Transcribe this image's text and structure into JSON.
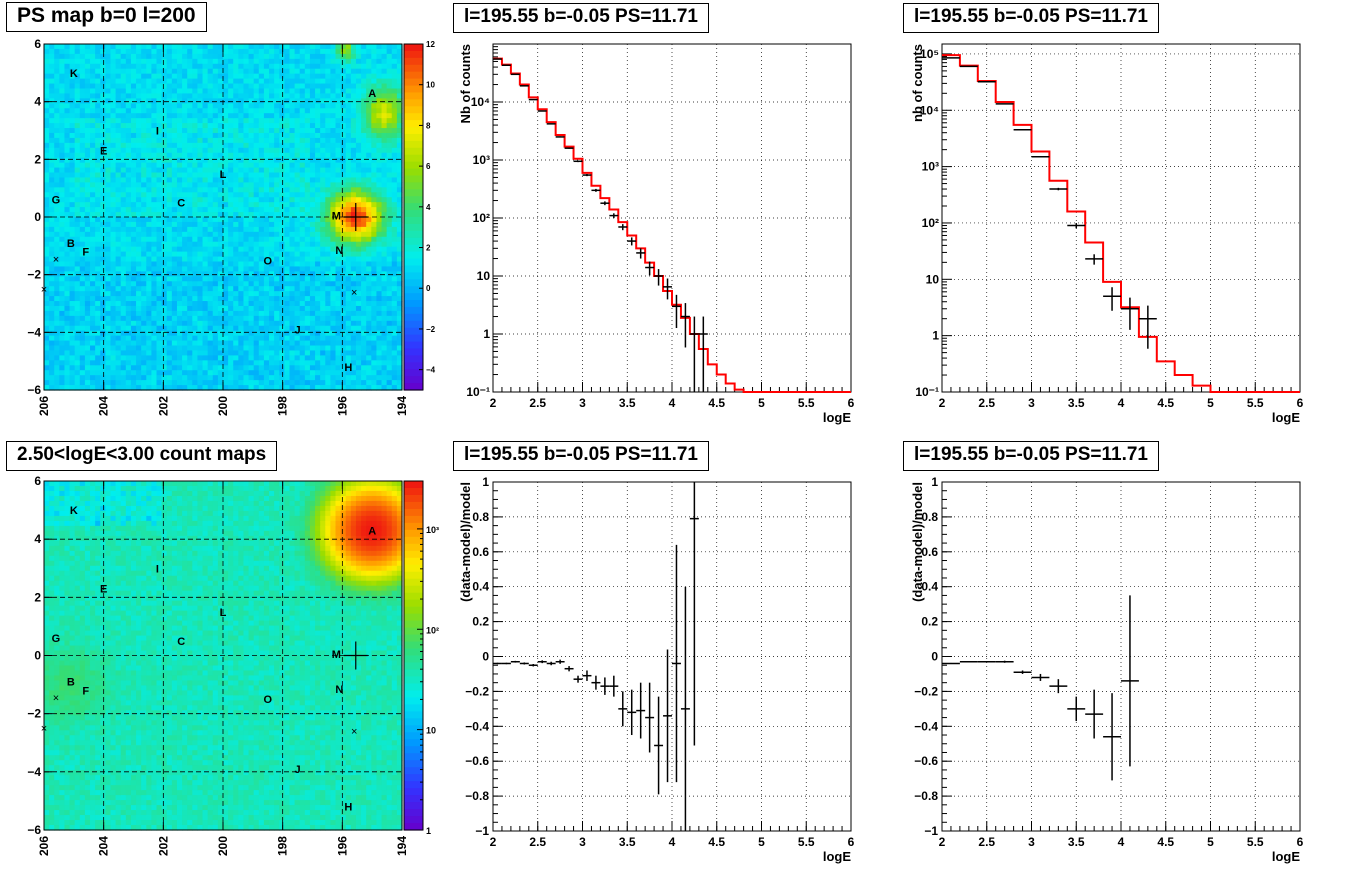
{
  "panels": {
    "map_ps": {
      "title": "PS map b=0 l=200",
      "palette_ticks": [
        "12",
        "10",
        "8",
        "6",
        "4",
        "2",
        "0",
        "−2",
        "−4"
      ]
    },
    "map_counts": {
      "title": "2.50<logE<3.00 count maps",
      "palette_ticks": [
        "10³",
        "10²",
        "10",
        "1"
      ]
    },
    "spec_left": {
      "title": "l=195.55 b=-0.05 PS=11.71"
    },
    "spec_right": {
      "title": "l=195.55 b=-0.05 PS=11.71"
    },
    "res_left": {
      "title": "l=195.55 b=-0.05 PS=11.71"
    },
    "res_right": {
      "title": "l=195.55 b=-0.05 PS=11.71"
    }
  },
  "chart_data": [
    {
      "type": "heatmap",
      "title": "PS map b=0 l=200",
      "xlim": [
        206,
        194
      ],
      "ylim": [
        -6,
        6
      ],
      "x_ticks": [
        "206",
        "204",
        "202",
        "200",
        "198",
        "196",
        "194"
      ],
      "y_ticks": [
        "6",
        "4",
        "2",
        "0",
        "−2",
        "−4",
        "−6"
      ],
      "z_range": [
        -5,
        12
      ],
      "grid": true,
      "sources": [
        {
          "label": "K",
          "l": 205.0,
          "b": 5.0
        },
        {
          "label": "A",
          "l": 195.0,
          "b": 4.3
        },
        {
          "label": "I",
          "l": 202.2,
          "b": 3.0
        },
        {
          "label": "E",
          "l": 204.0,
          "b": 2.3
        },
        {
          "label": "L",
          "l": 200.0,
          "b": 1.5
        },
        {
          "label": "G",
          "l": 205.6,
          "b": 0.6
        },
        {
          "label": "C",
          "l": 201.4,
          "b": 0.5
        },
        {
          "label": "M",
          "l": 196.2,
          "b": 0.05
        },
        {
          "label": "B",
          "l": 205.1,
          "b": -0.9
        },
        {
          "label": "F",
          "l": 204.6,
          "b": -1.2
        },
        {
          "label": "N",
          "l": 196.1,
          "b": -1.15
        },
        {
          "label": "O",
          "l": 198.5,
          "b": -1.5
        },
        {
          "label": "J",
          "l": 197.5,
          "b": -3.9
        },
        {
          "label": "H",
          "l": 195.8,
          "b": -5.2
        }
      ],
      "markers_x": [
        {
          "l": 205.6,
          "b": -1.45
        },
        {
          "l": 206.0,
          "b": -2.5
        },
        {
          "l": 195.6,
          "b": -2.6
        }
      ],
      "cross": {
        "l": 195.55,
        "b": 0.0
      }
    },
    {
      "type": "line",
      "title": "l=195.55 b=-0.05 PS=11.71",
      "xlabel": "logE",
      "ylabel": "Nb of counts",
      "xlim": [
        2,
        6
      ],
      "ylim": [
        0.1,
        100000
      ],
      "log_y": true,
      "grid": true,
      "x_ticks": [
        "2",
        "2.5",
        "3",
        "3.5",
        "4",
        "4.5",
        "5",
        "5.5",
        "6"
      ],
      "y_ticks": [
        "10⁻¹",
        "1",
        "10",
        "10²",
        "10³",
        "10⁴"
      ],
      "model_edges": [
        2.0,
        2.1,
        2.2,
        2.3,
        2.4,
        2.5,
        2.6,
        2.7,
        2.8,
        2.9,
        3.0,
        3.1,
        3.2,
        3.3,
        3.4,
        3.5,
        3.6,
        3.7,
        3.8,
        3.9,
        4.0,
        4.1,
        4.2,
        4.3,
        4.4,
        4.5,
        4.6,
        4.7,
        4.8,
        6.0
      ],
      "model_values": [
        56000,
        44000,
        31000,
        20000,
        12000,
        7500,
        4500,
        2700,
        1700,
        1050,
        600,
        360,
        220,
        140,
        85,
        50,
        30,
        17,
        10,
        5.5,
        3.2,
        1.9,
        1.0,
        0.55,
        0.3,
        0.2,
        0.14,
        0.11,
        0.1
      ],
      "data_x": [
        2.05,
        2.15,
        2.25,
        2.35,
        2.45,
        2.55,
        2.65,
        2.75,
        2.85,
        2.95,
        3.05,
        3.15,
        3.25,
        3.35,
        3.45,
        3.55,
        3.65,
        3.75,
        3.85,
        3.95,
        4.05,
        4.15,
        4.25,
        4.35
      ],
      "data_y": [
        55000,
        43000,
        30000,
        19000,
        11000,
        7000,
        4200,
        2500,
        1600,
        950,
        550,
        300,
        180,
        110,
        70,
        40,
        25,
        14,
        10,
        6.5,
        3,
        2,
        1,
        1
      ],
      "data_err_y": [
        1,
        1,
        1,
        1,
        1,
        1,
        1,
        1,
        1,
        1,
        1,
        1,
        1,
        1,
        1,
        1,
        1,
        1,
        1,
        1,
        1,
        1,
        1,
        1
      ]
    },
    {
      "type": "line",
      "title": "l=195.55 b=-0.05 PS=11.71",
      "xlabel": "logE",
      "ylabel": "nb of counts",
      "xlim": [
        2,
        6
      ],
      "ylim": [
        0.1,
        150000
      ],
      "log_y": true,
      "grid": true,
      "x_ticks": [
        "2",
        "2.5",
        "3",
        "3.5",
        "4",
        "4.5",
        "5",
        "5.5",
        "6"
      ],
      "y_ticks": [
        "10⁻¹",
        "1",
        "10",
        "10²",
        "10³",
        "10⁴",
        "10⁵"
      ],
      "model_edges": [
        2.0,
        2.2,
        2.4,
        2.6,
        2.8,
        3.0,
        3.2,
        3.4,
        3.6,
        3.8,
        4.0,
        4.2,
        4.4,
        4.6,
        4.8,
        5.0,
        6.0
      ],
      "model_values": [
        95000,
        62000,
        33000,
        14000,
        5500,
        1850,
        560,
        160,
        45,
        9,
        3.2,
        0.95,
        0.35,
        0.2,
        0.13,
        0.1
      ],
      "data_x": [
        2.1,
        2.3,
        2.5,
        2.7,
        2.9,
        3.1,
        3.3,
        3.5,
        3.7,
        3.9,
        4.1,
        4.3
      ],
      "data_y": [
        85000,
        60000,
        32000,
        13000,
        4500,
        1500,
        400,
        90,
        23,
        5,
        3,
        2
      ],
      "data_err_y": [
        1,
        1,
        1,
        1,
        1,
        1,
        1,
        1,
        1,
        1,
        1,
        1
      ]
    },
    {
      "type": "heatmap",
      "title": "2.50<logE<3.00 count maps",
      "xlim": [
        206,
        194
      ],
      "ylim": [
        -6,
        6
      ],
      "x_ticks": [
        "206",
        "204",
        "202",
        "200",
        "198",
        "196",
        "194"
      ],
      "y_ticks": [
        "6",
        "4",
        "2",
        "0",
        "−2",
        "−4",
        "−6"
      ],
      "z_range": [
        1,
        3000
      ],
      "log_z": true,
      "grid": true,
      "sources": [
        {
          "label": "K",
          "l": 205.0,
          "b": 5.0
        },
        {
          "label": "A",
          "l": 195.0,
          "b": 4.3
        },
        {
          "label": "I",
          "l": 202.2,
          "b": 3.0
        },
        {
          "label": "E",
          "l": 204.0,
          "b": 2.3
        },
        {
          "label": "L",
          "l": 200.0,
          "b": 1.5
        },
        {
          "label": "G",
          "l": 205.6,
          "b": 0.6
        },
        {
          "label": "C",
          "l": 201.4,
          "b": 0.5
        },
        {
          "label": "M",
          "l": 196.2,
          "b": 0.05
        },
        {
          "label": "B",
          "l": 205.1,
          "b": -0.9
        },
        {
          "label": "F",
          "l": 204.6,
          "b": -1.2
        },
        {
          "label": "N",
          "l": 196.1,
          "b": -1.15
        },
        {
          "label": "O",
          "l": 198.5,
          "b": -1.5
        },
        {
          "label": "J",
          "l": 197.5,
          "b": -3.9
        },
        {
          "label": "H",
          "l": 195.8,
          "b": -5.2
        }
      ],
      "markers_x": [
        {
          "l": 205.6,
          "b": -1.45
        },
        {
          "l": 206.0,
          "b": -2.5
        },
        {
          "l": 195.6,
          "b": -2.6
        }
      ],
      "cross": {
        "l": 195.55,
        "b": 0.0
      }
    },
    {
      "type": "scatter",
      "title": "l=195.55 b=-0.05 PS=11.71",
      "xlabel": "logE",
      "ylabel": "(data-model)/model",
      "xlim": [
        2,
        6
      ],
      "ylim": [
        -1,
        1
      ],
      "grid": true,
      "x_ticks": [
        "2",
        "2.5",
        "3",
        "3.5",
        "4",
        "4.5",
        "5",
        "5.5",
        "6"
      ],
      "y_ticks": [
        "1",
        "0.8",
        "0.6",
        "0.4",
        "0.2",
        "0",
        "−0.2",
        "−0.4",
        "−0.6",
        "−0.8",
        "−1"
      ],
      "x": [
        2.05,
        2.15,
        2.25,
        2.35,
        2.45,
        2.55,
        2.65,
        2.75,
        2.85,
        2.95,
        3.05,
        3.15,
        3.25,
        3.35,
        3.45,
        3.55,
        3.65,
        3.75,
        3.85,
        3.95,
        4.05,
        4.15,
        4.25
      ],
      "y": [
        -0.04,
        -0.04,
        -0.03,
        -0.04,
        -0.05,
        -0.03,
        -0.04,
        -0.03,
        -0.07,
        -0.13,
        -0.11,
        -0.15,
        -0.17,
        -0.17,
        -0.3,
        -0.32,
        -0.31,
        -0.35,
        -0.51,
        -0.34,
        -0.04,
        -0.3,
        0.79
      ],
      "y_err": [
        0.004,
        0.004,
        0.005,
        0.006,
        0.007,
        0.008,
        0.01,
        0.012,
        0.015,
        0.02,
        0.03,
        0.04,
        0.05,
        0.06,
        0.1,
        0.13,
        0.16,
        0.2,
        0.28,
        0.38,
        0.68,
        0.7,
        1.3
      ]
    },
    {
      "type": "scatter",
      "title": "l=195.55 b=-0.05 PS=11.71",
      "xlabel": "logE",
      "ylabel": "(data-model)/model",
      "xlim": [
        2,
        6
      ],
      "ylim": [
        -1,
        1
      ],
      "grid": true,
      "x_ticks": [
        "2",
        "2.5",
        "3",
        "3.5",
        "4",
        "4.5",
        "5",
        "5.5",
        "6"
      ],
      "y_ticks": [
        "1",
        "0.8",
        "0.6",
        "0.4",
        "0.2",
        "0",
        "−0.2",
        "−0.4",
        "−0.6",
        "−0.8",
        "−1"
      ],
      "x": [
        2.1,
        2.3,
        2.5,
        2.7,
        2.9,
        3.1,
        3.3,
        3.5,
        3.7,
        3.9,
        4.1
      ],
      "y": [
        -0.04,
        -0.03,
        -0.03,
        -0.03,
        -0.09,
        -0.12,
        -0.17,
        -0.3,
        -0.33,
        -0.46,
        -0.14
      ],
      "y_err": [
        0.003,
        0.003,
        0.004,
        0.006,
        0.01,
        0.02,
        0.04,
        0.07,
        0.14,
        0.25,
        0.49
      ]
    }
  ]
}
